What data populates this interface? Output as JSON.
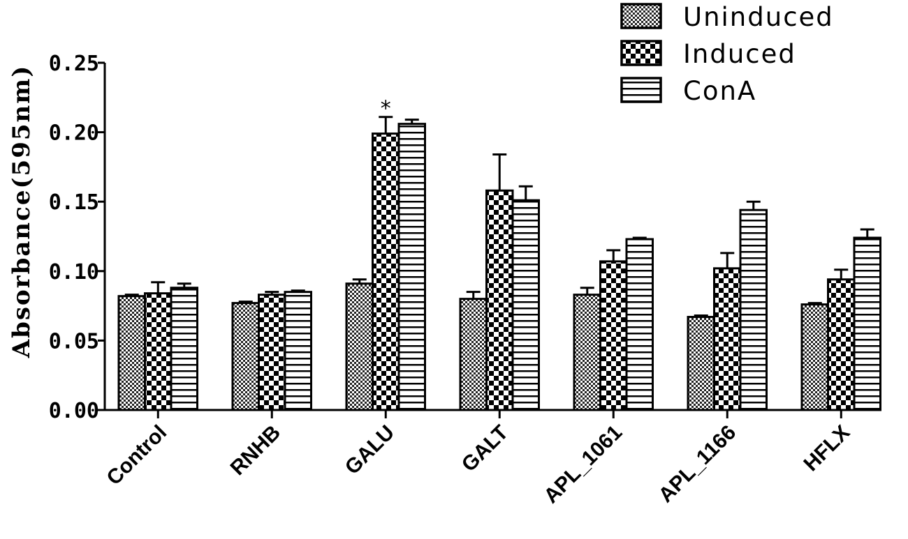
{
  "chart_data": {
    "type": "bar",
    "ylabel": "Absorbance(595nm)",
    "xlabel": "",
    "ylim": [
      0,
      0.25
    ],
    "yticks": [
      "0.00",
      "0.05",
      "0.10",
      "0.15",
      "0.20",
      "0.25"
    ],
    "categories": [
      "Control",
      "RNHB",
      "GALU",
      "GALT",
      "APL_1061",
      "APL_1166",
      "HFLX"
    ],
    "series": [
      {
        "name": "Uninduced",
        "pattern": "fine-check",
        "values": [
          0.082,
          0.077,
          0.091,
          0.08,
          0.083,
          0.067,
          0.076
        ],
        "errors": [
          0.001,
          0.001,
          0.003,
          0.005,
          0.005,
          0.001,
          0.001
        ]
      },
      {
        "name": "Induced",
        "pattern": "coarse-check",
        "values": [
          0.084,
          0.083,
          0.199,
          0.158,
          0.107,
          0.102,
          0.094
        ],
        "errors": [
          0.008,
          0.002,
          0.012,
          0.026,
          0.008,
          0.011,
          0.007
        ]
      },
      {
        "name": "ConA",
        "pattern": "horizontal-stripes",
        "values": [
          0.088,
          0.085,
          0.206,
          0.151,
          0.123,
          0.144,
          0.124
        ],
        "errors": [
          0.003,
          0.001,
          0.003,
          0.01,
          0.001,
          0.006,
          0.006
        ]
      }
    ],
    "annotations": [
      {
        "category": "GALU",
        "series": "Induced",
        "text": "*"
      }
    ],
    "legend_position": "top-right",
    "grid": false
  }
}
